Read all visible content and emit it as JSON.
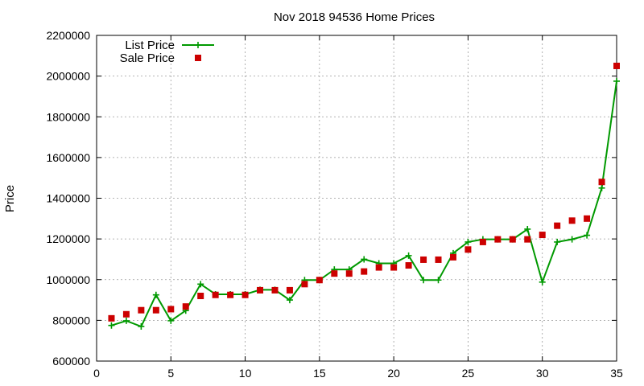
{
  "chart_data": {
    "type": "line",
    "title": "Nov 2018 94536 Home Prices",
    "xlabel": "",
    "ylabel": "Price",
    "xlim": [
      0,
      35
    ],
    "ylim": [
      600000,
      2200000
    ],
    "xticks": [
      0,
      5,
      10,
      15,
      20,
      25,
      30,
      35
    ],
    "yticks": [
      600000,
      800000,
      1000000,
      1200000,
      1400000,
      1600000,
      1800000,
      2000000,
      2200000
    ],
    "grid": true,
    "legend_position": "top-left",
    "x": [
      1,
      2,
      3,
      4,
      5,
      6,
      7,
      8,
      9,
      10,
      11,
      12,
      13,
      14,
      15,
      16,
      17,
      18,
      19,
      20,
      21,
      22,
      23,
      24,
      25,
      26,
      27,
      28,
      29,
      30,
      31,
      32,
      33,
      34,
      35
    ],
    "series": [
      {
        "name": "List Price",
        "style": "line-plus",
        "color": "#009900",
        "values": [
          775000,
          798000,
          770000,
          925000,
          798000,
          848000,
          978000,
          928000,
          928000,
          928000,
          950000,
          950000,
          900000,
          998000,
          998000,
          1050000,
          1050000,
          1100000,
          1080000,
          1080000,
          1118000,
          998000,
          998000,
          1130000,
          1185000,
          1198000,
          1198000,
          1198000,
          1248000,
          988000,
          1185000,
          1198000,
          1218000,
          1450000,
          1975000
        ]
      },
      {
        "name": "Sale Price",
        "style": "square-marker",
        "color": "#cc0000",
        "values": [
          810000,
          830000,
          850000,
          850000,
          855000,
          868000,
          920000,
          925000,
          925000,
          925000,
          948000,
          948000,
          948000,
          978000,
          998000,
          1030000,
          1030000,
          1040000,
          1060000,
          1060000,
          1070000,
          1098000,
          1098000,
          1110000,
          1148000,
          1185000,
          1198000,
          1198000,
          1198000,
          1220000,
          1265000,
          1290000,
          1300000,
          1480000,
          2050000
        ]
      }
    ]
  }
}
